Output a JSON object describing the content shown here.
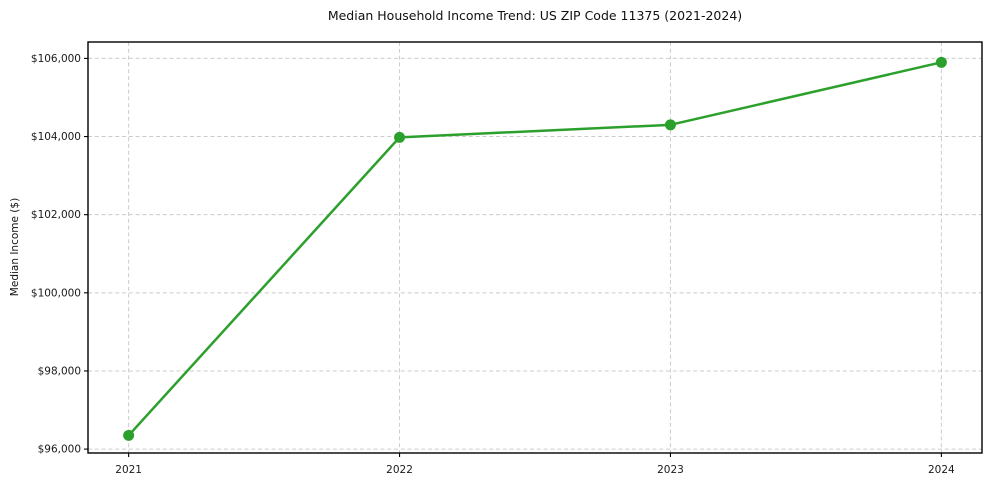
{
  "chart_data": {
    "type": "line",
    "title": "Median Household Income Trend: US ZIP Code 11375 (2021-2024)",
    "xlabel": "",
    "ylabel": "Median Income ($)",
    "categories": [
      2021,
      2022,
      2023,
      2024
    ],
    "xtick_labels": [
      "2021",
      "2022",
      "2023",
      "2024"
    ],
    "values": [
      96350,
      103980,
      104300,
      105900
    ],
    "yticks": [
      96000,
      98000,
      100000,
      102000,
      104000,
      106000
    ],
    "ytick_labels": [
      "$96,000",
      "$98,000",
      "$100,000",
      "$102,000",
      "$104,000",
      "$106,000"
    ],
    "xlim": [
      2020.85,
      2024.15
    ],
    "ylim": [
      95900,
      106420
    ],
    "grid": true,
    "grid_style": "dashed",
    "legend": false,
    "line_color": "#2ca02c",
    "marker": "circle",
    "marker_color": "#2ca02c",
    "background_color": "#ffffff",
    "grid_color": "#cccccc"
  }
}
